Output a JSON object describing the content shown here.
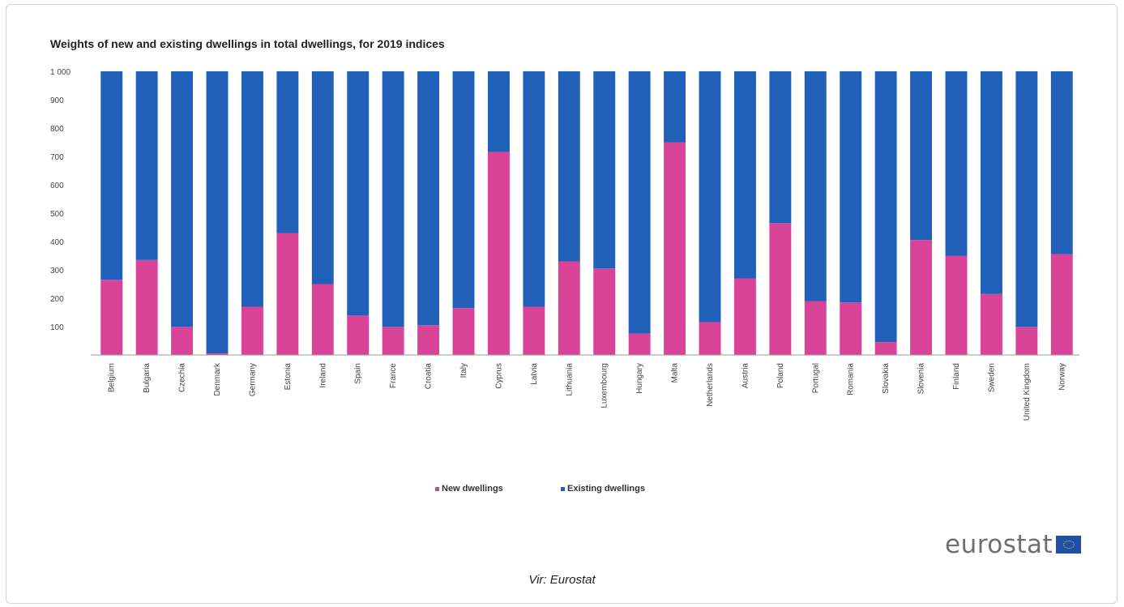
{
  "caption": "Vir: Eurostat",
  "brand": "eurostat",
  "chart_data": {
    "type": "bar",
    "stacked": true,
    "title": "Weights of new and existing dwellings in total dwellings, for 2019 indices",
    "xlabel": "",
    "ylabel": "",
    "ylim": [
      0,
      1000
    ],
    "yticks": [
      "1 000",
      "900",
      "800",
      "700",
      "600",
      "500",
      "400",
      "300",
      "200",
      "100"
    ],
    "ytick_values": [
      1000,
      900,
      800,
      700,
      600,
      500,
      400,
      300,
      200,
      100
    ],
    "grid": false,
    "legend_position": "bottom",
    "categories": [
      "Belgium",
      "Bulgaria",
      "Czechia",
      "Denmark",
      "Germany",
      "Estonia",
      "Ireland",
      "Spain",
      "France",
      "Croatia",
      "Italy",
      "Cyprus",
      "Latvia",
      "Lithuania",
      "Luxembourg",
      "Hungary",
      "Malta",
      "Netherlands",
      "Austria",
      "Poland",
      "Portugal",
      "Romania",
      "Slovakia",
      "Slovenia",
      "Finland",
      "Sweden",
      "United Kingdom",
      "Norway"
    ],
    "series": [
      {
        "name": "New dwellings",
        "color": "#d94499",
        "values": [
          265,
          335,
          100,
          5,
          170,
          430,
          250,
          140,
          100,
          105,
          165,
          715,
          170,
          330,
          305,
          75,
          750,
          115,
          270,
          465,
          190,
          185,
          45,
          405,
          350,
          215,
          100,
          355
        ]
      },
      {
        "name": "Existing dwellings",
        "color": "#2160b8",
        "values": [
          735,
          665,
          900,
          995,
          830,
          570,
          750,
          860,
          900,
          895,
          835,
          285,
          830,
          670,
          695,
          925,
          250,
          885,
          730,
          535,
          810,
          815,
          955,
          595,
          650,
          785,
          900,
          645
        ]
      }
    ]
  }
}
